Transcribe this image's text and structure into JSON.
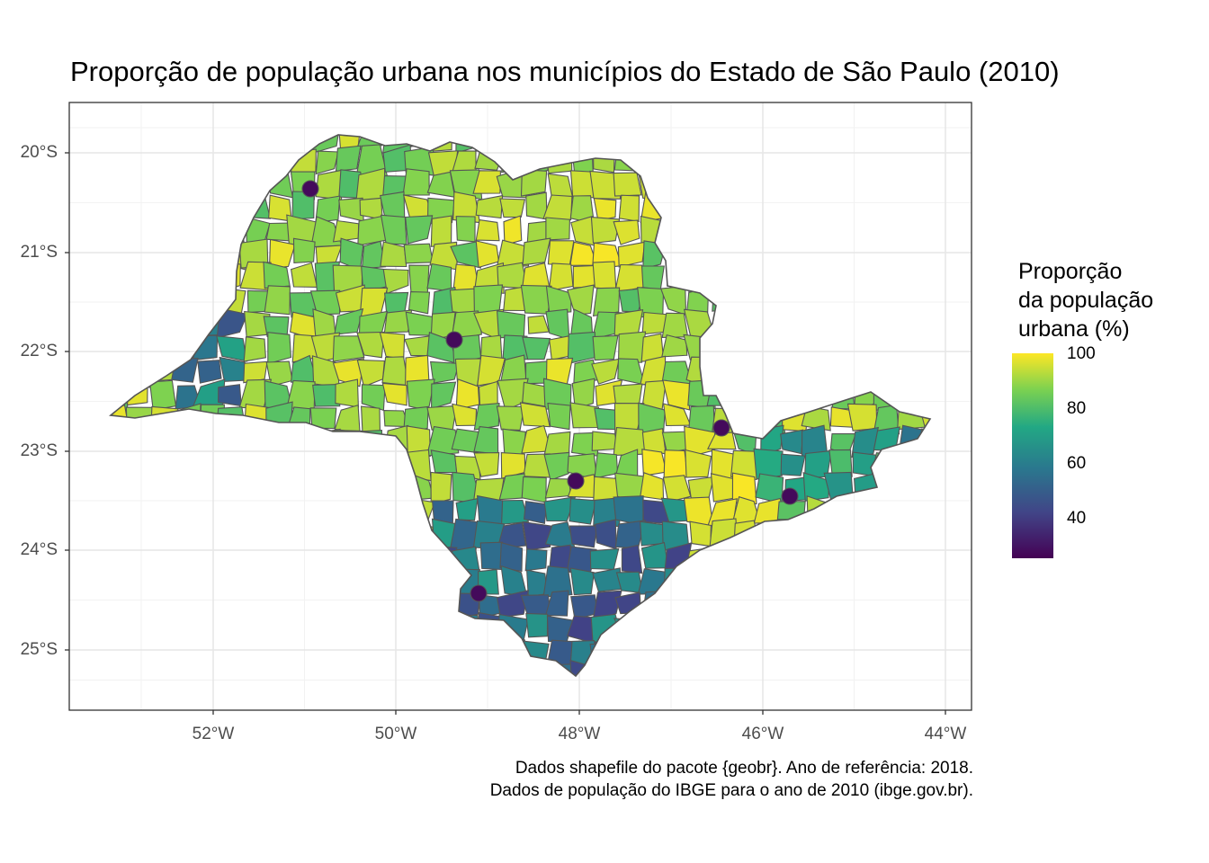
{
  "title": "Proporção de população urbana nos municípios do Estado de São Paulo (2010)",
  "caption": {
    "line1": "Dados shapefile do pacote {geobr}. Ano de referência: 2018.",
    "line2": "Dados de população do IBGE para o ano de 2010 (ibge.gov.br)."
  },
  "legend": {
    "title_line1": "Proporção",
    "title_line2": "da população",
    "title_line3": "urbana (%)",
    "labels": [
      "100",
      "80",
      "60",
      "40"
    ],
    "range": [
      26,
      100
    ],
    "palette": "viridis",
    "colors": [
      "#FDE725",
      "#7AD151",
      "#22A884",
      "#2A788E",
      "#414487",
      "#440154"
    ]
  },
  "axes": {
    "y_ticks": [
      "20°S",
      "21°S",
      "22°S",
      "23°S",
      "24°S",
      "25°S"
    ],
    "x_ticks": [
      "52°W",
      "50°W",
      "48°W",
      "46°W",
      "44°W"
    ],
    "lon_range": [
      -53.3,
      -43.8
    ],
    "lat_range": [
      -25.6,
      -19.5
    ],
    "grid": true
  },
  "map": {
    "region": "Estado de São Paulo",
    "fill_variable": "proporção urbana (%)",
    "border_color": "#555555"
  }
}
